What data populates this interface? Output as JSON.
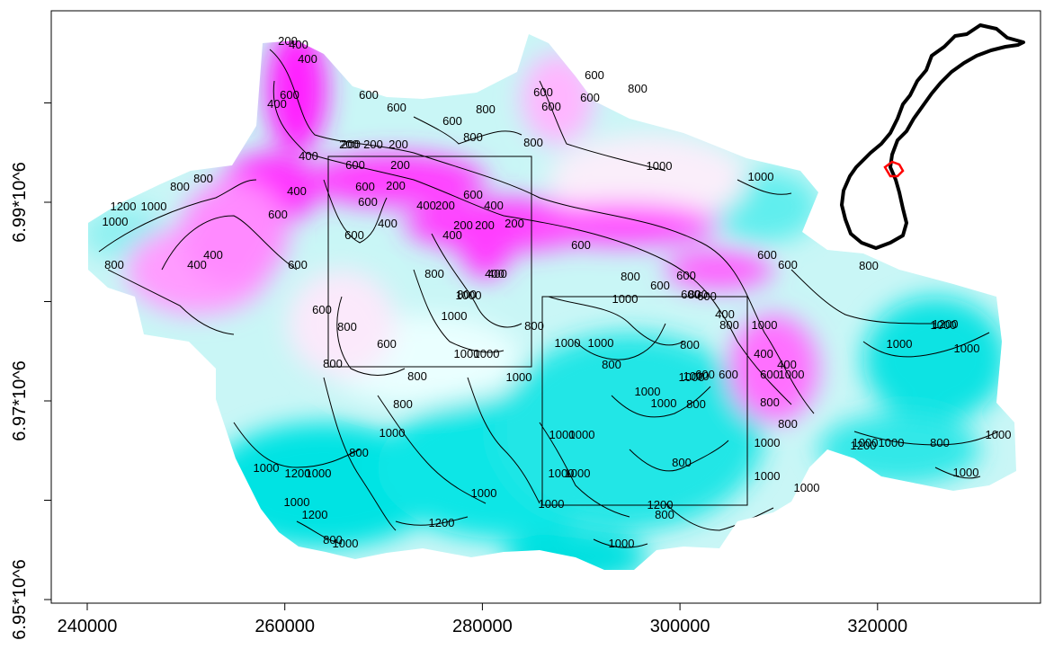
{
  "map": {
    "x_ticks": [
      {
        "label": "240000",
        "value": 240000
      },
      {
        "label": "260000",
        "value": 260000
      },
      {
        "label": "280000",
        "value": 280000
      },
      {
        "label": "300000",
        "value": 300000
      },
      {
        "label": "320000",
        "value": 320000
      }
    ],
    "y_ticks": [
      {
        "label": "6.95*10^6",
        "value": 6950000
      },
      {
        "label": "6.97*10^6",
        "value": 6970000
      },
      {
        "label": "6.99*10^6",
        "value": 6990000
      }
    ],
    "colors": {
      "low": "#ff00ff",
      "mid": "#ffffff",
      "high": "#00e5e5",
      "contour": "#000000",
      "inset_region": "#ff0000"
    },
    "inset_locator": "Norway outline with study area highlighted in red",
    "contour_labels": [
      "200",
      "400",
      "400",
      "600",
      "400",
      "600",
      "600",
      "600",
      "800",
      "600",
      "600",
      "600",
      "600",
      "800",
      "800",
      "200",
      "200",
      "200",
      "200",
      "400",
      "200",
      "800",
      "600",
      "800",
      "800",
      "1000",
      "1000",
      "1200",
      "1000",
      "1000",
      "600",
      "600",
      "400",
      "200",
      "400",
      "200",
      "600",
      "400",
      "200",
      "200",
      "400",
      "400",
      "200",
      "600",
      "400",
      "600",
      "600",
      "600",
      "400",
      "800",
      "400",
      "400",
      "600",
      "600",
      "800",
      "800",
      "1000",
      "800",
      "600",
      "600",
      "800",
      "600",
      "1000",
      "800",
      "1000",
      "800",
      "800",
      "600",
      "600",
      "800",
      "1000",
      "1000",
      "1000",
      "800",
      "400",
      "800",
      "600",
      "1000",
      "1000",
      "1200",
      "800",
      "1000",
      "1000",
      "600",
      "1000",
      "1000",
      "1000",
      "800",
      "800",
      "400",
      "400",
      "800",
      "600",
      "1000",
      "1000",
      "1000",
      "600",
      "800",
      "1000",
      "800",
      "800",
      "1000",
      "1000",
      "800",
      "1000",
      "1000",
      "1000",
      "1000",
      "800",
      "1000",
      "1200",
      "1000",
      "1000",
      "1000",
      "1000",
      "1000",
      "1200",
      "1000",
      "1000",
      "1200",
      "1000",
      "1000",
      "1200",
      "1000",
      "1200",
      "800",
      "1000",
      "800",
      "1000"
    ]
  },
  "chart_data": {
    "type": "heatmap",
    "xlabel": "",
    "ylabel": "",
    "xlim": [
      236000,
      338000
    ],
    "ylim": [
      6947000,
      7009000
    ],
    "grid": false,
    "legend": "none",
    "colorscale": [
      "#ff00ff",
      "#ffffff",
      "#00e5e5"
    ],
    "contour_levels": [
      200,
      400,
      600,
      800,
      1000,
      1200
    ],
    "rectangles": [
      {
        "x": [
          265000,
          285500
        ],
        "y": [
          6977200,
          6998500
        ]
      },
      {
        "x": [
          286500,
          307300
        ],
        "y": [
          6964500,
          6985300
        ]
      }
    ]
  }
}
